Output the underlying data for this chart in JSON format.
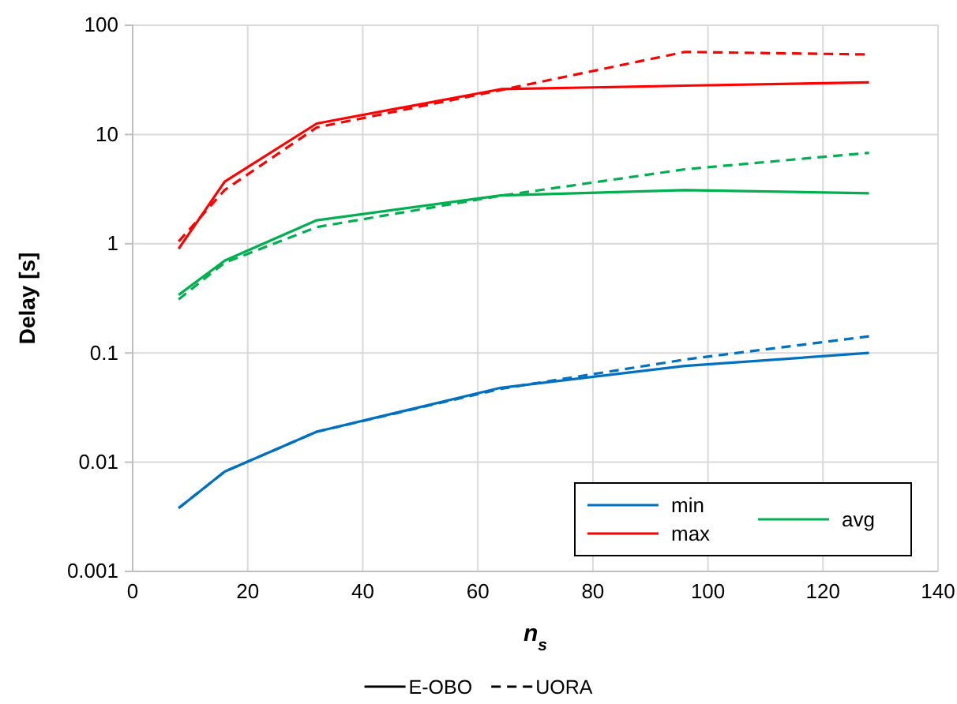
{
  "chart_data": {
    "type": "line",
    "xlabel": "n$_{s}$",
    "ylabel": "Delay [s]",
    "x": [
      8,
      16,
      32,
      64,
      96,
      128
    ],
    "series": [
      {
        "name": "min",
        "color": "#0070c0",
        "line_style": "solid",
        "values": [
          0.0038,
          0.0082,
          0.019,
          0.048,
          0.076,
          0.1
        ]
      },
      {
        "name": "max",
        "color": "#ff0000",
        "line_style": "solid",
        "values": [
          0.9,
          3.7,
          12.6,
          26,
          28,
          30
        ]
      },
      {
        "name": "avg",
        "color": "#00b050",
        "line_style": "solid",
        "values": [
          0.34,
          0.7,
          1.64,
          2.77,
          3.1,
          2.9
        ]
      },
      {
        "color": "#0070c0",
        "line_style": "dashed",
        "values": [
          0.0038,
          0.0082,
          0.019,
          0.047,
          0.087,
          0.142
        ]
      },
      {
        "color": "#ff0000",
        "line_style": "dashed",
        "values": [
          1.05,
          3.1,
          11.6,
          25.5,
          57,
          54
        ]
      },
      {
        "color": "#00b050",
        "line_style": "dashed",
        "values": [
          0.31,
          0.67,
          1.42,
          2.75,
          4.8,
          6.8
        ]
      }
    ],
    "annotations": [
      "E-OBO",
      "UORA"
    ],
    "xlim": [
      0,
      140
    ],
    "xticks": [
      0,
      20,
      40,
      60,
      80,
      100,
      120,
      140
    ],
    "ylim": [
      0.001,
      100
    ],
    "yticks": [
      0.001,
      0.01,
      0.1,
      1,
      10,
      100
    ],
    "log": "y",
    "grid": true,
    "legend": "bottom right",
    "marker": "none"
  }
}
